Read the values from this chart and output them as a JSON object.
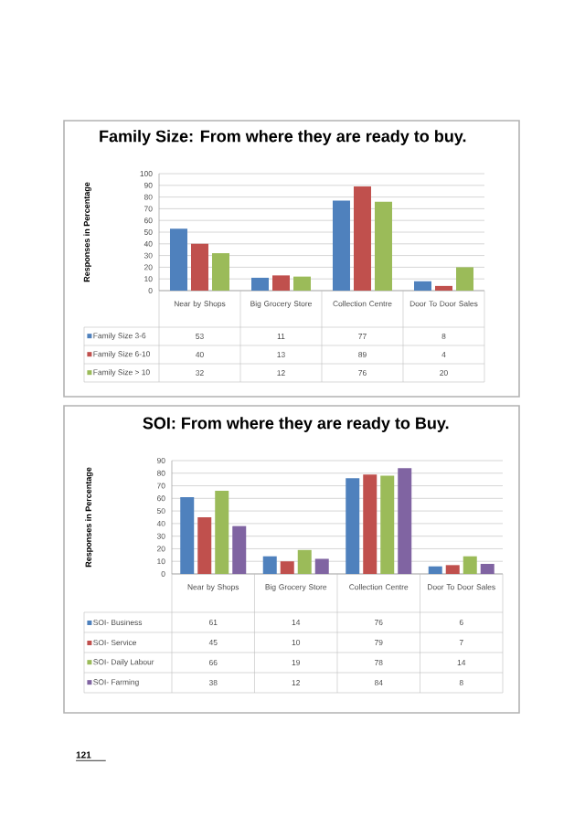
{
  "chart_data": [
    {
      "type": "bar",
      "title": "Family Size: From where they are ready to buy.",
      "ylabel": "Responses in Percentage",
      "categories": [
        "Near by Shops",
        "Big Grocery Store",
        "Collection Centre",
        "Door To Door Sales"
      ],
      "series": [
        {
          "name": "Family Size 3-6",
          "color": "#4f81bd",
          "values": [
            53,
            11,
            77,
            8
          ]
        },
        {
          "name": "Family Size 6-10",
          "color": "#c0504d",
          "values": [
            40,
            13,
            89,
            4
          ]
        },
        {
          "name": "Family Size > 10",
          "color": "#9bbb59",
          "values": [
            32,
            12,
            76,
            20
          ]
        }
      ],
      "ylim": [
        0,
        100
      ],
      "yticks": [
        0,
        10,
        20,
        30,
        40,
        50,
        60,
        70,
        80,
        90,
        100
      ],
      "grid": "y",
      "legend": "bottom",
      "data_labels": true
    },
    {
      "type": "bar",
      "title": "SOI: From where they are ready to Buy.",
      "ylabel": "Responses in Percentage",
      "categories": [
        "Near by Shops",
        "Big Grocery Store",
        "Collection Centre",
        "Door To Door Sales"
      ],
      "series": [
        {
          "name": "SOI- Business",
          "color": "#4f81bd",
          "values": [
            61,
            14,
            76,
            6
          ]
        },
        {
          "name": "SOI- Service",
          "color": "#c0504d",
          "values": [
            45,
            10,
            79,
            7
          ]
        },
        {
          "name": "SOI- Daily Labour",
          "color": "#9bbb59",
          "values": [
            66,
            19,
            78,
            14
          ]
        },
        {
          "name": "SOI- Farming",
          "color": "#8064a2",
          "values": [
            38,
            12,
            84,
            8
          ]
        }
      ],
      "ylim": [
        0,
        90
      ],
      "yticks": [
        0,
        10,
        20,
        30,
        40,
        50,
        60,
        70,
        80,
        90
      ],
      "grid": "y",
      "legend": "bottom",
      "data_labels": true,
      "annotations": [
        "121"
      ]
    }
  ]
}
